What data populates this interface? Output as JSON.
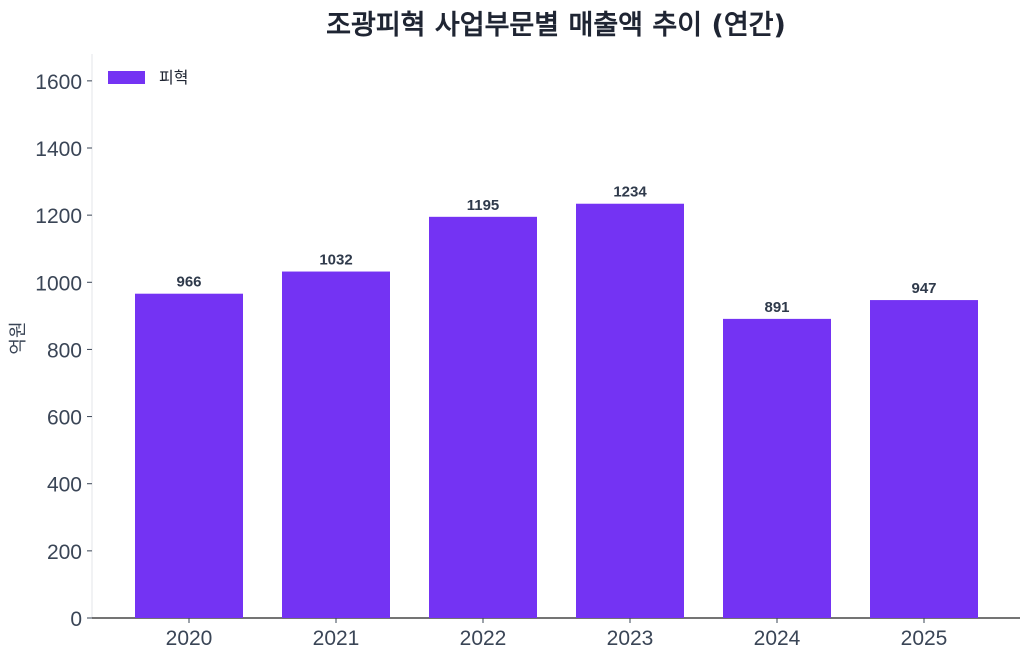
{
  "chart_data": {
    "type": "bar",
    "title": "조광피혁 사업부문별 매출액 추이 (연간)",
    "xlabel": "",
    "ylabel": "억원",
    "categories": [
      "2020",
      "2021",
      "2022",
      "2023",
      "2024",
      "2025"
    ],
    "series": [
      {
        "name": "피혁",
        "values": [
          966,
          1032,
          1195,
          1234,
          891,
          947
        ],
        "color": "#7433f3"
      }
    ],
    "ylim": [
      0,
      1680
    ],
    "yticks": [
      0,
      200,
      400,
      600,
      800,
      1000,
      1200,
      1400,
      1600
    ],
    "grid": false,
    "legend_position": "top-left"
  }
}
